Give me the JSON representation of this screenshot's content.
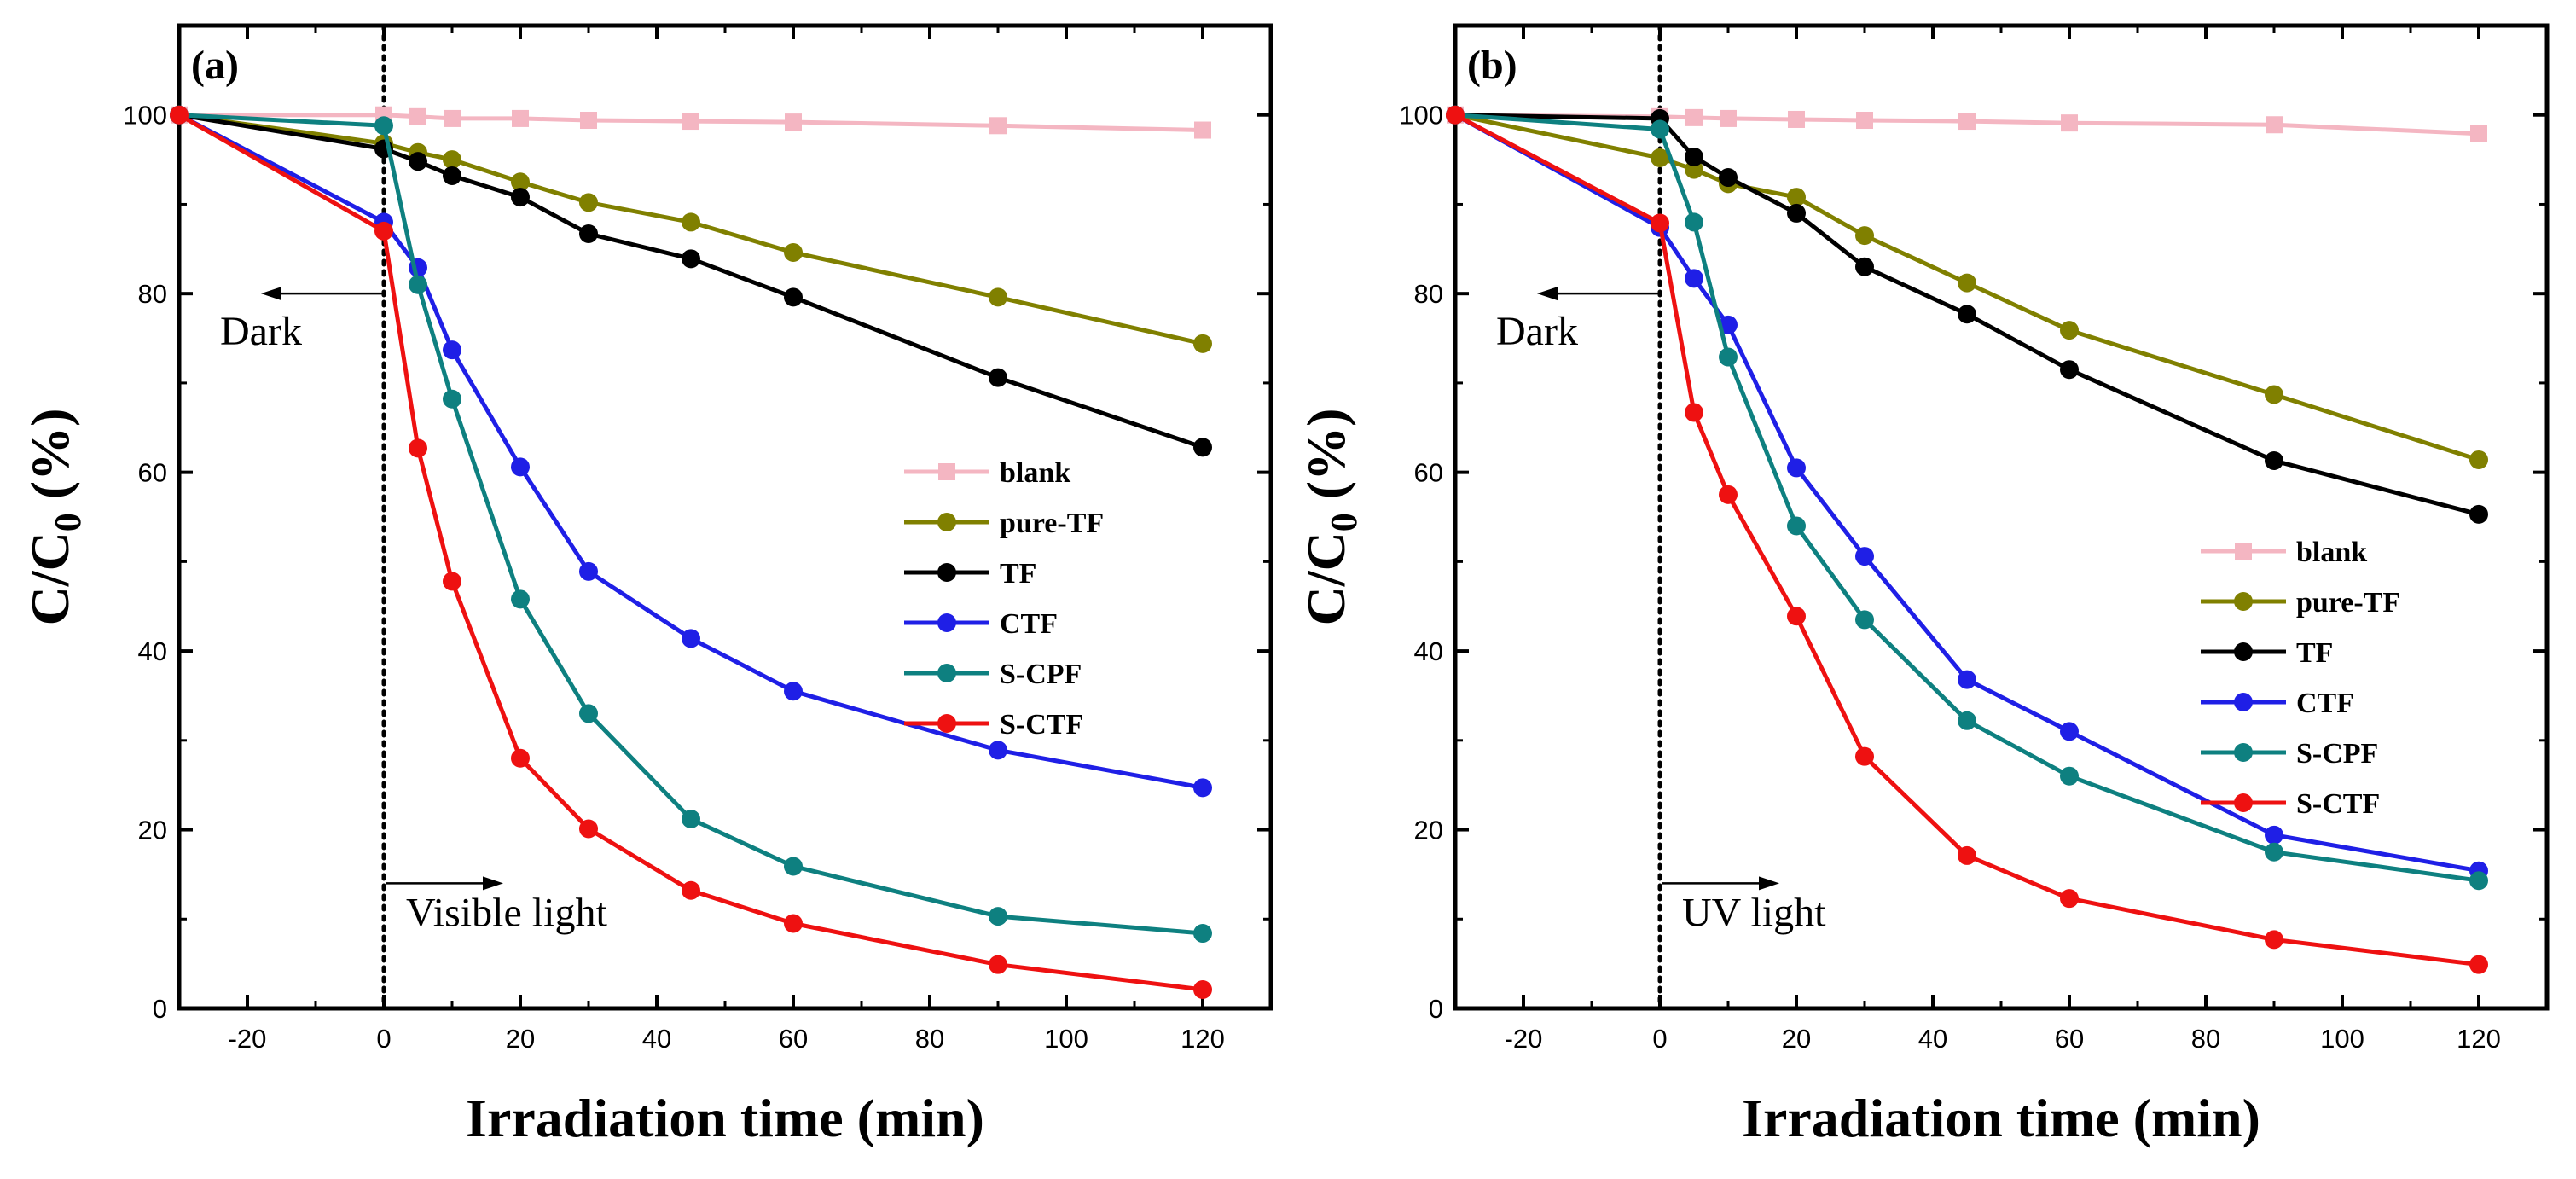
{
  "chart_data": [
    {
      "type": "line",
      "panel_label": "(a)",
      "xlabel": "Irradiation time (min)",
      "ylabel_main": "C/C",
      "ylabel_sub": "0",
      "ylabel_tail": " (%)",
      "xlim": [
        -30,
        130
      ],
      "ylim": [
        0,
        110
      ],
      "xticks": [
        -20,
        0,
        20,
        40,
        60,
        80,
        100,
        120
      ],
      "yticks": [
        0,
        20,
        40,
        60,
        80,
        100
      ],
      "legend_position": "right-middle",
      "annotations": {
        "dark": "Dark",
        "light": "Visible light"
      },
      "x": [
        -30,
        0,
        5,
        10,
        20,
        30,
        45,
        60,
        90,
        120
      ],
      "series": [
        {
          "name": "blank",
          "color": "#f4b6c2",
          "marker": "square",
          "values": [
            100,
            100,
            99.8,
            99.6,
            99.6,
            99.4,
            99.3,
            99.2,
            98.8,
            98.3
          ]
        },
        {
          "name": "pure-TF",
          "color": "#808000",
          "marker": "circle",
          "values": [
            100,
            96.8,
            95.8,
            95,
            92.5,
            90.2,
            88,
            84.6,
            79.6,
            74.4
          ]
        },
        {
          "name": "TF",
          "color": "#000000",
          "marker": "circle",
          "values": [
            100,
            96.2,
            94.8,
            93.2,
            90.8,
            86.7,
            83.9,
            79.6,
            70.6,
            62.8
          ]
        },
        {
          "name": "CTF",
          "color": "#1f1fe6",
          "marker": "circle",
          "values": [
            100,
            88,
            82.9,
            73.7,
            60.6,
            48.9,
            41.4,
            35.5,
            28.9,
            24.7
          ]
        },
        {
          "name": "S-CPF",
          "color": "#0e8080",
          "marker": "circle",
          "values": [
            100,
            98.8,
            81,
            68.2,
            45.8,
            33,
            21.2,
            15.9,
            10.3,
            8.4
          ]
        },
        {
          "name": "S-CTF",
          "color": "#ee1111",
          "marker": "circle",
          "values": [
            100,
            87,
            62.7,
            47.8,
            28,
            20.1,
            13.2,
            9.5,
            4.9,
            2.1
          ]
        }
      ]
    },
    {
      "type": "line",
      "panel_label": "(b)",
      "xlabel": "Irradiation time (min)",
      "ylabel_main": "C/C",
      "ylabel_sub": "0",
      "ylabel_tail": " (%)",
      "xlim": [
        -30,
        130
      ],
      "ylim": [
        0,
        110
      ],
      "xticks": [
        -20,
        0,
        20,
        40,
        60,
        80,
        100,
        120
      ],
      "yticks": [
        0,
        20,
        40,
        60,
        80,
        100
      ],
      "legend_position": "right-middle",
      "annotations": {
        "dark": "Dark",
        "light": "UV light"
      },
      "x": [
        -30,
        0,
        5,
        10,
        20,
        30,
        45,
        60,
        90,
        120
      ],
      "series": [
        {
          "name": "blank",
          "color": "#f4b6c2",
          "marker": "square",
          "values": [
            100,
            99.8,
            99.7,
            99.6,
            99.5,
            99.4,
            99.3,
            99.1,
            98.9,
            97.9
          ]
        },
        {
          "name": "pure-TF",
          "color": "#808000",
          "marker": "circle",
          "values": [
            100,
            95.2,
            93.9,
            92.3,
            90.8,
            86.5,
            81.2,
            75.9,
            68.7,
            61.4
          ]
        },
        {
          "name": "TF",
          "color": "#000000",
          "marker": "circle",
          "values": [
            100,
            99.6,
            95.3,
            93,
            89,
            83,
            77.7,
            71.5,
            61.3,
            55.3
          ]
        },
        {
          "name": "CTF",
          "color": "#1f1fe6",
          "marker": "circle",
          "values": [
            100,
            87.4,
            81.7,
            76.5,
            60.5,
            50.6,
            36.8,
            31,
            19.4,
            15.4
          ]
        },
        {
          "name": "S-CPF",
          "color": "#0e8080",
          "marker": "circle",
          "values": [
            100,
            98.4,
            88,
            72.9,
            54,
            43.5,
            32.2,
            26,
            17.5,
            14.3
          ]
        },
        {
          "name": "S-CTF",
          "color": "#ee1111",
          "marker": "circle",
          "values": [
            100,
            87.9,
            66.7,
            57.5,
            43.9,
            28.2,
            17.1,
            12.3,
            7.7,
            4.9
          ]
        }
      ]
    }
  ]
}
